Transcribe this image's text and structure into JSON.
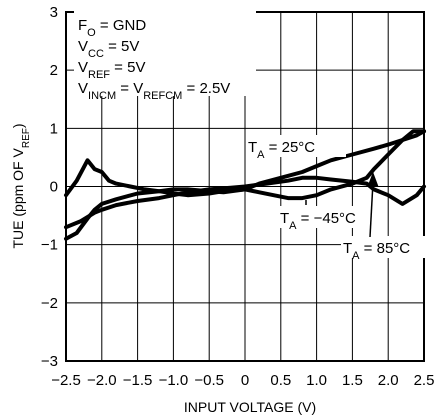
{
  "chart_data": {
    "type": "line",
    "xlabel": "INPUT VOLTAGE (V)",
    "ylabel": {
      "pre": "TUE (ppm OF V",
      "sub": "REF",
      "post": ")"
    },
    "xlim": [
      -2.5,
      2.5
    ],
    "ylim": [
      -3,
      3
    ],
    "x_ticks": [
      "−2.5",
      "−2.0",
      "−1.5",
      "−1.0",
      "−0.5",
      "0",
      "0.5",
      "1.0",
      "1.5",
      "2.0",
      "2.5"
    ],
    "x_tick_values": [
      -2.5,
      -2.0,
      -1.5,
      -1.0,
      -0.5,
      0,
      0.5,
      1.0,
      1.5,
      2.0,
      2.5
    ],
    "y_ticks": [
      "3",
      "2",
      "1",
      "0",
      "−1",
      "−2",
      "−3"
    ],
    "y_tick_values": [
      3,
      2,
      1,
      0,
      -1,
      -2,
      -3
    ],
    "grid": true,
    "conditions": [
      {
        "pre": "F",
        "sub": "O",
        "post": " = GND"
      },
      {
        "pre": "V",
        "sub": "CC",
        "post": " = 5V"
      },
      {
        "pre": "V",
        "sub": "REF",
        "post": " = 5V"
      },
      {
        "pre": "V",
        "sub": "INCM",
        "post": " = V",
        "sub2": "REFCM",
        "post2": " = 2.5V"
      }
    ],
    "series_labels": [
      {
        "pre": "T",
        "sub": "A",
        "post": " = 25°C"
      },
      {
        "pre": "T",
        "sub": "A",
        "post": " = −45°C"
      },
      {
        "pre": "T",
        "sub": "A",
        "post": " = 85°C"
      }
    ],
    "series": [
      {
        "x": [
          -2.5,
          -2.35,
          -2.2,
          -2.1,
          -2.0,
          -1.8,
          -1.5,
          -1.2,
          -1.0,
          -0.8,
          -0.5,
          -0.3,
          0,
          0.2,
          0.5,
          0.8,
          1.0,
          1.2,
          1.5,
          1.8,
          2.0,
          2.2,
          2.4,
          2.5
        ],
        "y": [
          -0.9,
          -0.8,
          -0.55,
          -0.4,
          -0.3,
          -0.22,
          -0.12,
          -0.08,
          -0.05,
          -0.05,
          -0.08,
          -0.1,
          -0.05,
          0.05,
          0.15,
          0.25,
          0.35,
          0.45,
          0.55,
          0.65,
          0.72,
          0.8,
          0.88,
          0.95
        ]
      },
      {
        "x": [
          -2.5,
          -2.3,
          -2.1,
          -2.0,
          -1.8,
          -1.5,
          -1.2,
          -1.0,
          -0.8,
          -0.5,
          -0.2,
          0,
          0.3,
          0.6,
          0.8,
          1.0,
          1.2,
          1.5,
          1.7,
          1.8,
          2.0,
          2.2,
          2.4,
          2.5
        ],
        "y": [
          -0.7,
          -0.6,
          -0.45,
          -0.4,
          -0.32,
          -0.25,
          -0.2,
          -0.15,
          -0.1,
          -0.05,
          -0.02,
          0.0,
          0.05,
          0.1,
          0.15,
          0.15,
          0.12,
          0.08,
          0.05,
          -0.05,
          -0.15,
          -0.3,
          -0.15,
          0.0
        ]
      },
      {
        "x": [
          -2.5,
          -2.35,
          -2.2,
          -2.1,
          -2.0,
          -1.9,
          -1.8,
          -1.6,
          -1.4,
          -1.2,
          -1.0,
          -0.8,
          -0.5,
          -0.3,
          0,
          0.2,
          0.4,
          0.6,
          0.8,
          1.0,
          1.2,
          1.5,
          1.7,
          1.8,
          2.0,
          2.2,
          2.35,
          2.5
        ],
        "y": [
          -0.15,
          0.1,
          0.45,
          0.3,
          0.25,
          0.1,
          0.05,
          0.0,
          -0.05,
          -0.08,
          -0.12,
          -0.15,
          -0.12,
          -0.08,
          -0.05,
          -0.1,
          -0.15,
          -0.2,
          -0.2,
          -0.15,
          -0.05,
          0.05,
          0.15,
          0.3,
          0.55,
          0.8,
          0.95,
          0.95
        ]
      }
    ]
  }
}
